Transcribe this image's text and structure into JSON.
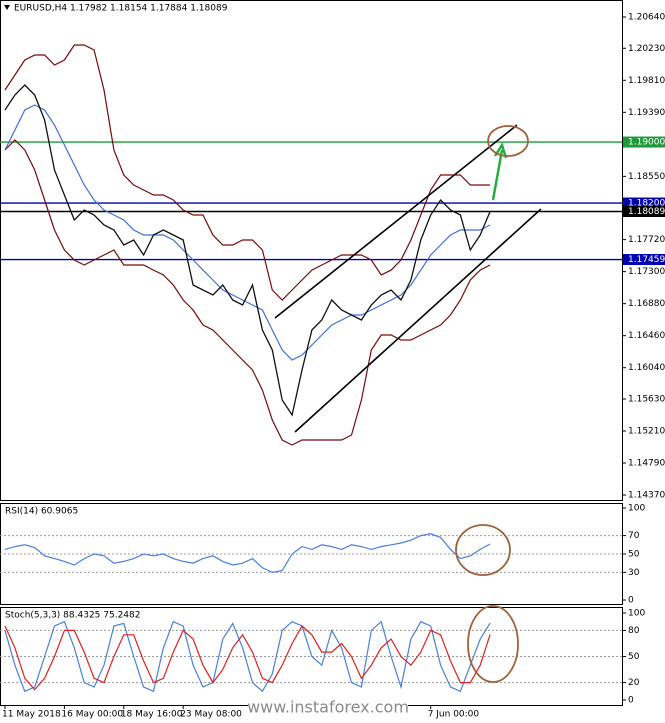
{
  "watermark": "www.instaforex.com",
  "chart_data": [
    {
      "type": "line",
      "title": "EURUSD,H4  1.17982 1.18154 1.17884 1.18089",
      "ylim": [
        1.14305,
        1.20863
      ],
      "yticks": [
        {
          "value": 1.2064,
          "label": "1.20640"
        },
        {
          "value": 1.2023,
          "label": "1.20230"
        },
        {
          "value": 1.1981,
          "label": "1.19810"
        },
        {
          "value": 1.1939,
          "label": "1.19390"
        },
        {
          "value": 1.1855,
          "label": "1.18550"
        },
        {
          "value": 1.1772,
          "label": "1.17720"
        },
        {
          "value": 1.173,
          "label": "1.17300"
        },
        {
          "value": 1.1688,
          "label": "1.16880"
        },
        {
          "value": 1.1646,
          "label": "1.16460"
        },
        {
          "value": 1.1604,
          "label": "1.16040"
        },
        {
          "value": 1.1563,
          "label": "1.15630"
        },
        {
          "value": 1.1521,
          "label": "1.15210"
        },
        {
          "value": 1.1479,
          "label": "1.14790"
        },
        {
          "value": 1.1437,
          "label": "1.14370"
        }
      ],
      "grid": false,
      "levels": [
        {
          "value": 1.19,
          "label": "1.19000",
          "color": "#1f9a3a"
        },
        {
          "value": 1.182,
          "label": "1.18200",
          "color": "#0000b0"
        },
        {
          "value": 1.18089,
          "label": "1.18089",
          "color": "#000000"
        },
        {
          "value": 1.17459,
          "label": "1.17459",
          "color": "#0000b0"
        }
      ],
      "series": [
        {
          "color": "#7a0a0a",
          "values": [
            1.19682,
            1.19879,
            1.20076,
            1.20142,
            1.20142,
            1.2001,
            1.20076,
            1.20273,
            1.20273,
            1.20207,
            1.19682,
            1.18895,
            1.18568,
            1.18436,
            1.18371,
            1.18305,
            1.18305,
            1.1824,
            1.18109,
            1.18043,
            1.18043,
            1.17781,
            1.17649,
            1.17649,
            1.17715,
            1.17715,
            1.17584,
            1.17059,
            1.16928,
            1.17059,
            1.1719,
            1.17321,
            1.17387,
            1.17453,
            1.17518,
            1.17518,
            1.17518,
            1.17453,
            1.17256,
            1.17321,
            1.17453,
            1.17715,
            1.18043,
            1.18371,
            1.18568,
            1.18568,
            1.18568,
            1.18436,
            1.18436,
            1.18436
          ]
        },
        {
          "color": "#7a0a0a",
          "values": [
            1.18895,
            1.19027,
            1.18895,
            1.18633,
            1.1824,
            1.17846,
            1.17584,
            1.17453,
            1.17387,
            1.17453,
            1.17518,
            1.17584,
            1.17387,
            1.17387,
            1.17387,
            1.17321,
            1.17256,
            1.17125,
            1.16928,
            1.16797,
            1.166,
            1.16535,
            1.16403,
            1.16272,
            1.16141,
            1.1601,
            1.15747,
            1.15354,
            1.15092,
            1.15026,
            1.15092,
            1.15092,
            1.15092,
            1.15092,
            1.15092,
            1.15157,
            1.15616,
            1.16272,
            1.16469,
            1.16469,
            1.16403,
            1.16403,
            1.16469,
            1.16535,
            1.166,
            1.16731,
            1.16928,
            1.1719,
            1.17321,
            1.17387
          ]
        },
        {
          "color": "#3f6fd8",
          "values": [
            1.18895,
            1.19158,
            1.1942,
            1.19486,
            1.1942,
            1.19223,
            1.18961,
            1.18699,
            1.18436,
            1.1824,
            1.18109,
            1.18043,
            1.17977,
            1.17846,
            1.17781,
            1.17781,
            1.17781,
            1.17715,
            1.17584,
            1.17453,
            1.17321,
            1.1719,
            1.17059,
            1.16994,
            1.16928,
            1.16862,
            1.16797,
            1.16535,
            1.16272,
            1.16141,
            1.16207,
            1.16338,
            1.16469,
            1.166,
            1.16666,
            1.16731,
            1.16731,
            1.16797,
            1.16862,
            1.16928,
            1.16994,
            1.17125,
            1.17321,
            1.17518,
            1.17649,
            1.17781,
            1.17846,
            1.17846,
            1.17846,
            1.17912
          ]
        },
        {
          "color": "#111111",
          "values": [
            1.1942,
            1.19617,
            1.19748,
            1.19617,
            1.19289,
            1.18633,
            1.18305,
            1.17977,
            1.18109,
            1.18043,
            1.17912,
            1.17846,
            1.17649,
            1.17715,
            1.17518,
            1.17781,
            1.17846,
            1.17781,
            1.17715,
            1.17125,
            1.17059,
            1.16994,
            1.17125,
            1.16928,
            1.16862,
            1.17125,
            1.16535,
            1.16272,
            1.15616,
            1.1542,
            1.1601,
            1.16535,
            1.16666,
            1.16928,
            1.16797,
            1.16731,
            1.16666,
            1.16862,
            1.16994,
            1.17059,
            1.16928,
            1.1719,
            1.17715,
            1.18043,
            1.1824,
            1.18109,
            1.18043,
            1.17584,
            1.17781,
            1.18089
          ]
        }
      ]
    },
    {
      "type": "line",
      "title": "RSI(14) 60.9065",
      "ylim": [
        0,
        100
      ],
      "yticks": [
        0,
        30,
        50,
        70,
        100
      ],
      "grid": true,
      "series": [
        {
          "color": "#4a7fe0",
          "values": [
            55,
            58,
            60,
            57,
            48,
            45,
            42,
            38,
            45,
            50,
            48,
            40,
            42,
            45,
            50,
            48,
            50,
            45,
            42,
            40,
            45,
            48,
            42,
            38,
            40,
            45,
            35,
            30,
            32,
            50,
            58,
            55,
            60,
            58,
            55,
            60,
            58,
            55,
            58,
            60,
            62,
            65,
            70,
            72,
            68,
            55,
            45,
            48,
            55,
            60.9065
          ]
        }
      ]
    },
    {
      "type": "line",
      "title": "Stoch(5,3,3) 88.4325 75.2482",
      "ylim": [
        0,
        100
      ],
      "yticks": [
        0,
        20,
        50,
        80,
        100
      ],
      "grid": true,
      "categories": [
        "11 May 2018",
        null,
        null,
        null,
        null,
        null,
        "16 May 00:00",
        null,
        null,
        null,
        null,
        null,
        "18 May 16:00",
        null,
        null,
        null,
        null,
        null,
        "23 May 08:00",
        null,
        null,
        null,
        null,
        null,
        null,
        null,
        null,
        null,
        null,
        null,
        null,
        null,
        null,
        null,
        null,
        null,
        null,
        null,
        null,
        null,
        null,
        null,
        null,
        "7 Jun 00:00",
        null,
        null,
        null,
        null,
        null,
        null
      ],
      "series": [
        {
          "color": "#4a7fe0",
          "values": [
            80,
            40,
            10,
            15,
            50,
            85,
            90,
            60,
            20,
            15,
            40,
            85,
            88,
            50,
            15,
            10,
            60,
            90,
            85,
            40,
            15,
            20,
            70,
            88,
            60,
            20,
            10,
            30,
            80,
            90,
            85,
            50,
            40,
            80,
            60,
            20,
            15,
            80,
            90,
            50,
            15,
            70,
            90,
            85,
            40,
            15,
            10,
            40,
            70,
            88.4325
          ]
        },
        {
          "color": "#e02020",
          "values": [
            85,
            60,
            25,
            12,
            25,
            50,
            80,
            80,
            55,
            25,
            20,
            50,
            75,
            75,
            45,
            20,
            25,
            55,
            80,
            70,
            40,
            20,
            35,
            60,
            75,
            55,
            25,
            20,
            40,
            65,
            85,
            75,
            55,
            55,
            65,
            50,
            25,
            40,
            60,
            70,
            50,
            40,
            55,
            80,
            75,
            45,
            20,
            20,
            40,
            75.2482
          ]
        }
      ]
    }
  ]
}
